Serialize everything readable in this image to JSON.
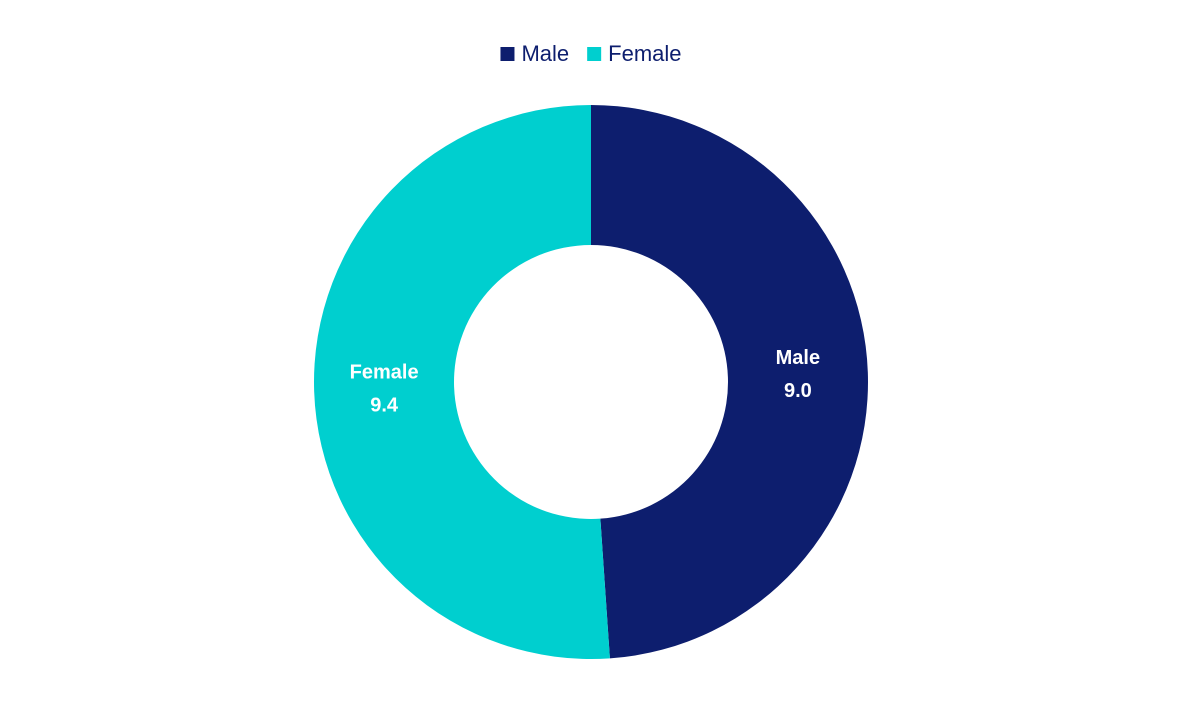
{
  "chart_data": {
    "type": "donut",
    "categories": [
      "Male",
      "Female"
    ],
    "values": [
      9.0,
      9.4
    ],
    "value_labels": [
      "9.0",
      "9.4"
    ],
    "colors": [
      "#0d1e6e",
      "#00cfcf"
    ],
    "legend": "top"
  }
}
